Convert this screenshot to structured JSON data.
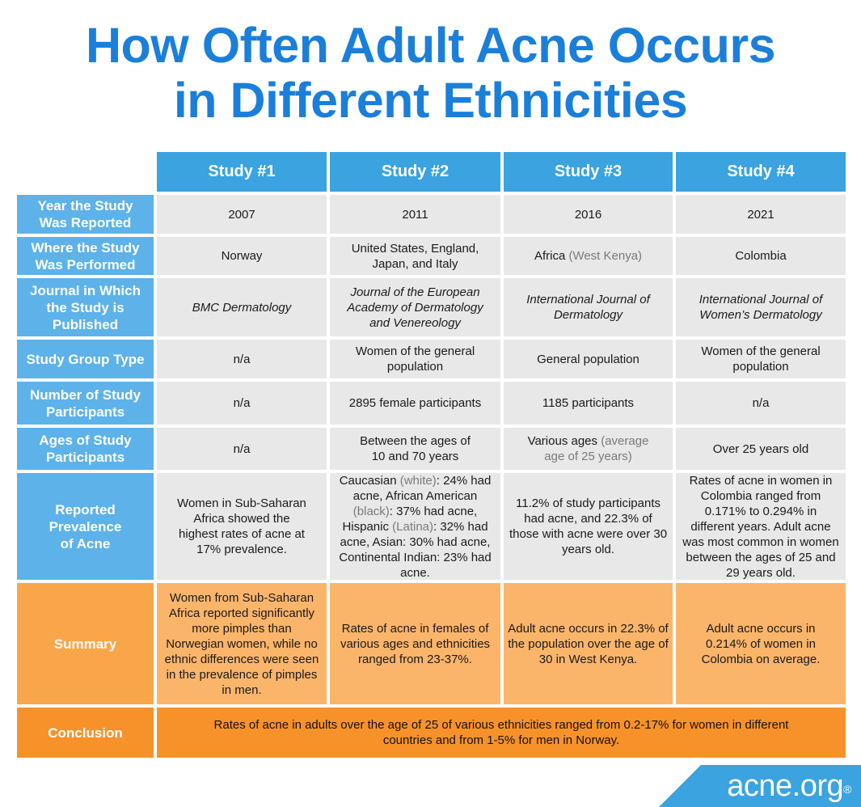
{
  "title": {
    "line1": "How Often Adult Acne Occurs",
    "line2": "in Different Ethnicities"
  },
  "columns": [
    "Study #1",
    "Study #2",
    "Study #3",
    "Study #4"
  ],
  "row_labels": {
    "year": "Year the Study Was Reported",
    "where": "Where the Study Was Performed",
    "journal": "Journal in Which the Study is Published",
    "group": "Study Group Type",
    "number": "Number of Study Participants",
    "ages": "Ages of Study Participants",
    "prevalence": "Reported Prevalence of Acne",
    "summary": "Summary",
    "conclusion": "Conclusion"
  },
  "year": [
    "2007",
    "2011",
    "2016",
    "2021"
  ],
  "where": {
    "s1": "Norway",
    "s2": "United States, England, Japan, and Italy",
    "s3_main": "Africa",
    "s3_note": "(West Kenya)",
    "s4": "Colombia"
  },
  "journal": [
    "BMC Dermatology",
    "Journal of the European Academy of Dermatology and Venereology",
    "International Journal of Dermatology",
    "International Journal of Women’s Dermatology"
  ],
  "group": [
    "n/a",
    "Women of the general population",
    "General population",
    "Women of the general population"
  ],
  "number": [
    "n/a",
    "2895 female participants",
    "1185 participants",
    "n/a"
  ],
  "ages": {
    "s1": "n/a",
    "s2": "Between the ages of 10 and 70 years",
    "s3_main": "Various ages",
    "s3_note": "(average age of 25 years)",
    "s4": "Over 25 years old"
  },
  "prevalence": {
    "s1": "Women in Sub-Saharan Africa showed the highest rates of acne at 17% prevalence.",
    "s2": {
      "p1": "Caucasian ",
      "p1_note": "(white)",
      "p2": ": 24% had acne, African American ",
      "p2_note": "(black)",
      "p3": ": 37% had acne, Hispanic ",
      "p3_note": "(Latina)",
      "p4": ": 32% had acne, Asian: 30% had acne, Continental Indian: 23% had acne."
    },
    "s3": "11.2% of study participants had acne, and 22.3% of those with acne were over 30 years old.",
    "s4": "Rates of acne in women in Colombia ranged from 0.171% to 0.294% in different years. Adult acne was most common in women between the ages of 25 and 29 years old."
  },
  "summary": [
    "Women from Sub-Saharan Africa reported significantly more pimples than Norwegian women, while no ethnic differences were seen in the prevalence of pimples in men.",
    "Rates of acne in females of various ages and ethnicities ranged from 23-37%.",
    "Adult acne occurs in 22.3% of the population over the age of 30 in West Kenya.",
    "Adult acne occurs in 0.214% of women in Colombia on average."
  ],
  "conclusion": "Rates of acne in adults over the age of 25 of various ethnicities ranged from 0.2-17% for women in different countries and from 1-5% for men in Norway.",
  "logo": {
    "text": "acne.org",
    "mark": "®"
  },
  "colors": {
    "title": "#1b7fd9",
    "header": "#3aa3e0",
    "label": "#5db2ea",
    "cell": "#e8e8e8",
    "summary": "#fbb56b",
    "conclusion": "#f7922a"
  }
}
